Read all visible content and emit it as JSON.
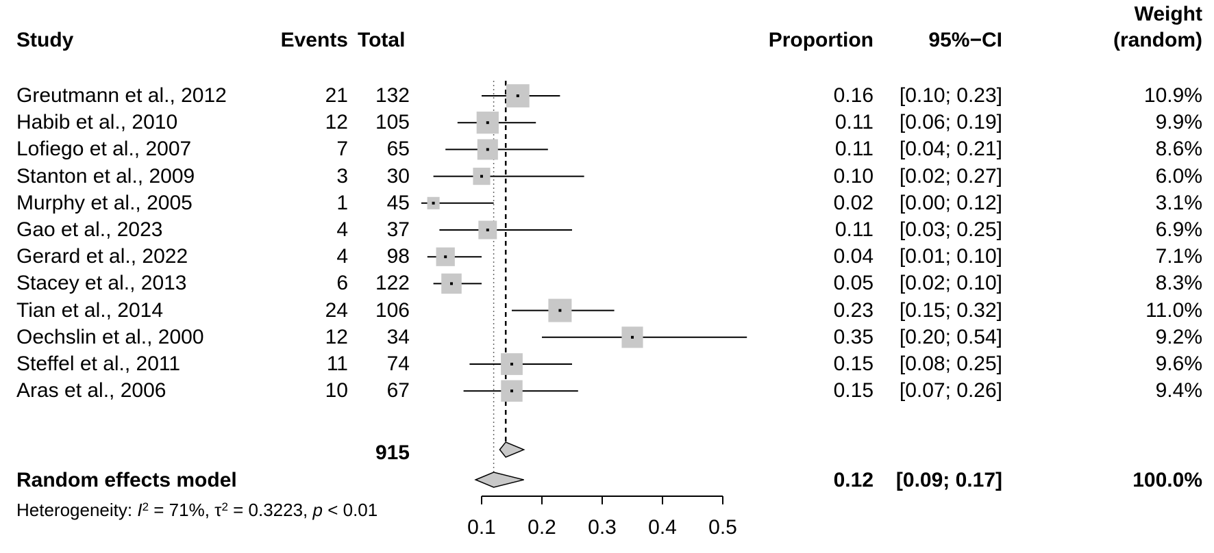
{
  "headers": {
    "study": "Study",
    "events": "Events",
    "total": "Total",
    "proportion": "Proportion",
    "ci": "95%−CI",
    "weight_line1": "Weight",
    "weight_line2": "(random)"
  },
  "studies": [
    {
      "study": "Greutmann et al., 2012",
      "events": "21",
      "total": "132",
      "proportion": "0.16",
      "ci": "[0.10; 0.23]",
      "weight": "10.9%"
    },
    {
      "study": "Habib et al., 2010",
      "events": "12",
      "total": "105",
      "proportion": "0.11",
      "ci": "[0.06; 0.19]",
      "weight": "9.9%"
    },
    {
      "study": "Lofiego et al., 2007",
      "events": "7",
      "total": "65",
      "proportion": "0.11",
      "ci": "[0.04; 0.21]",
      "weight": "8.6%"
    },
    {
      "study": "Stanton et al., 2009",
      "events": "3",
      "total": "30",
      "proportion": "0.10",
      "ci": "[0.02; 0.27]",
      "weight": "6.0%"
    },
    {
      "study": "Murphy et al., 2005",
      "events": "1",
      "total": "45",
      "proportion": "0.02",
      "ci": "[0.00; 0.12]",
      "weight": "3.1%"
    },
    {
      "study": "Gao et al., 2023",
      "events": "4",
      "total": "37",
      "proportion": "0.11",
      "ci": "[0.03; 0.25]",
      "weight": "6.9%"
    },
    {
      "study": "Gerard et al., 2022",
      "events": "4",
      "total": "98",
      "proportion": "0.04",
      "ci": "[0.01; 0.10]",
      "weight": "7.1%"
    },
    {
      "study": "Stacey et al., 2013",
      "events": "6",
      "total": "122",
      "proportion": "0.05",
      "ci": "[0.02; 0.10]",
      "weight": "8.3%"
    },
    {
      "study": "Tian et al., 2014",
      "events": "24",
      "total": "106",
      "proportion": "0.23",
      "ci": "[0.15; 0.32]",
      "weight": "11.0%"
    },
    {
      "study": "Oechslin et al., 2000",
      "events": "12",
      "total": "34",
      "proportion": "0.35",
      "ci": "[0.20; 0.54]",
      "weight": "9.2%"
    },
    {
      "study": "Steffel et al., 2011",
      "events": "11",
      "total": "74",
      "proportion": "0.15",
      "ci": "[0.08; 0.25]",
      "weight": "9.6%"
    },
    {
      "study": "Aras et al., 2006",
      "events": "10",
      "total": "67",
      "proportion": "0.15",
      "ci": "[0.07; 0.26]",
      "weight": "9.4%"
    }
  ],
  "total_count": "915",
  "random_model": {
    "label": "Random effects model",
    "proportion": "0.12",
    "ci": "[0.09; 0.17]",
    "weight": "100.0%"
  },
  "heterogeneity": {
    "prefix": "Heterogeneity: ",
    "i2_symbol": "I",
    "i2_value": " = 71%, ",
    "tau_symbol": "τ",
    "tau_value": " = 0.3223, ",
    "p_symbol": "p",
    "p_value": " < 0.01"
  },
  "chart_data": {
    "type": "forest",
    "x_ticks": [
      "0.1",
      "0.2",
      "0.3",
      "0.4",
      "0.5"
    ],
    "x_tick_values": [
      0.1,
      0.2,
      0.3,
      0.4,
      0.5
    ],
    "xlim": [
      0.1,
      0.5
    ],
    "points": [
      {
        "est": 0.16,
        "lo": 0.1,
        "hi": 0.23,
        "weight": 10.9
      },
      {
        "est": 0.11,
        "lo": 0.06,
        "hi": 0.19,
        "weight": 9.9
      },
      {
        "est": 0.11,
        "lo": 0.04,
        "hi": 0.21,
        "weight": 8.6
      },
      {
        "est": 0.1,
        "lo": 0.02,
        "hi": 0.27,
        "weight": 6.0
      },
      {
        "est": 0.02,
        "lo": 0.0,
        "hi": 0.12,
        "weight": 3.1
      },
      {
        "est": 0.11,
        "lo": 0.03,
        "hi": 0.25,
        "weight": 6.9
      },
      {
        "est": 0.04,
        "lo": 0.01,
        "hi": 0.1,
        "weight": 7.1
      },
      {
        "est": 0.05,
        "lo": 0.02,
        "hi": 0.1,
        "weight": 8.3
      },
      {
        "est": 0.23,
        "lo": 0.15,
        "hi": 0.32,
        "weight": 11.0
      },
      {
        "est": 0.35,
        "lo": 0.2,
        "hi": 0.54,
        "weight": 9.2
      },
      {
        "est": 0.15,
        "lo": 0.08,
        "hi": 0.25,
        "weight": 9.6
      },
      {
        "est": 0.15,
        "lo": 0.07,
        "hi": 0.26,
        "weight": 9.4
      }
    ],
    "common_effect": {
      "est": 0.14,
      "lo": 0.13,
      "hi": 0.17
    },
    "random_effect": {
      "est": 0.12,
      "lo": 0.09,
      "hi": 0.17
    },
    "square_color": "#c8c8c8",
    "diamond_color": "#c8c8c8"
  }
}
